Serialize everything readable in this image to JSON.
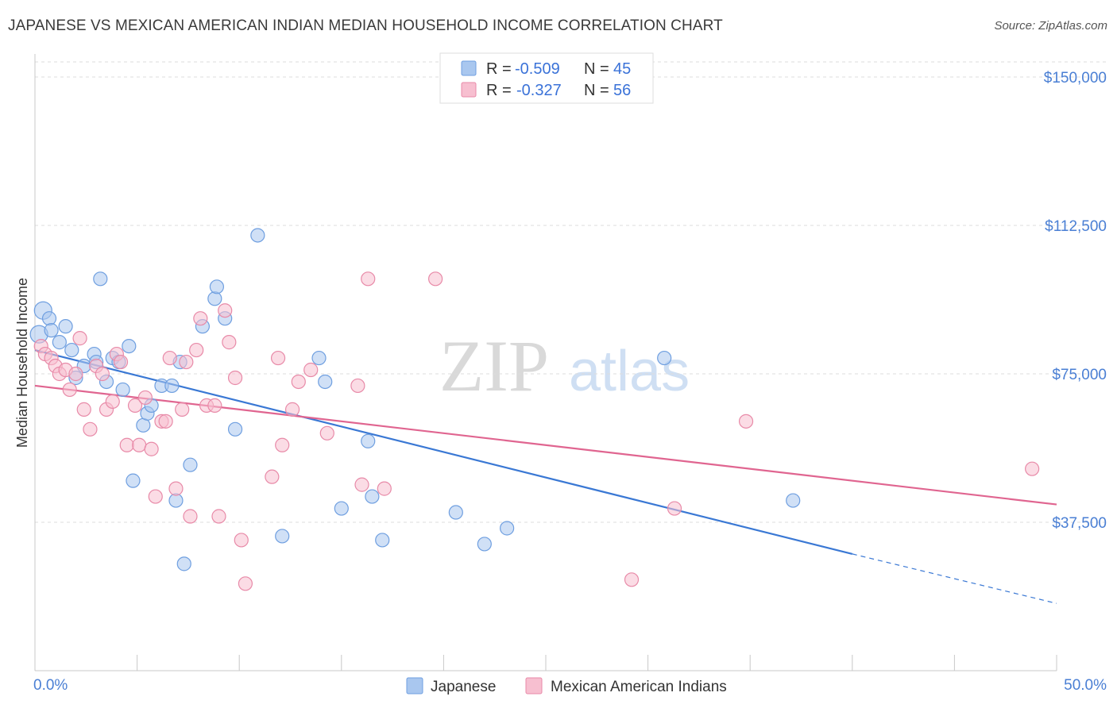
{
  "title": "JAPANESE VS MEXICAN AMERICAN INDIAN MEDIAN HOUSEHOLD INCOME CORRELATION CHART",
  "source": "Source: ZipAtlas.com",
  "watermark": {
    "zip": "ZIP",
    "atlas": "atlas"
  },
  "legend": {
    "r_label": "R =",
    "n_label": "N =",
    "items": [
      {
        "r": "-0.509",
        "n": "45",
        "color": "#a9c7ef",
        "stroke": "#6f9fe0"
      },
      {
        "r": "-0.327",
        "n": "56",
        "color": "#f7bfd0",
        "stroke": "#e88aa8"
      }
    ]
  },
  "bottom_legend": [
    {
      "label": "Japanese",
      "color": "#a9c7ef",
      "stroke": "#6f9fe0"
    },
    {
      "label": "Mexican American Indians",
      "color": "#f7bfd0",
      "stroke": "#e88aa8"
    }
  ],
  "chart_data": {
    "type": "scatter",
    "ylabel": "Median Household Income",
    "xlim": [
      0,
      50
    ],
    "ylim": [
      0,
      150000
    ],
    "x_tick_labels": {
      "min": "0.0%",
      "max": "50.0%"
    },
    "y_ticks": [
      {
        "value": 37500,
        "label": "$37,500"
      },
      {
        "value": 75000,
        "label": "$75,000"
      },
      {
        "value": 112500,
        "label": "$112,500"
      },
      {
        "value": 150000,
        "label": "$150,000"
      }
    ],
    "series": [
      {
        "name": "Japanese",
        "color": "#a9c7ef",
        "stroke": "#6f9fe0",
        "line_color": "#3a78d4",
        "trend": {
          "x0": 0,
          "y0": 81000,
          "x1": 40,
          "y1": 29500,
          "dash_to_x": 50,
          "dash_to_y": 17000
        },
        "points": [
          [
            0.2,
            85000
          ],
          [
            0.4,
            91000
          ],
          [
            0.7,
            89000
          ],
          [
            0.8,
            86000
          ],
          [
            1.2,
            83000
          ],
          [
            1.5,
            87000
          ],
          [
            1.8,
            81000
          ],
          [
            2.0,
            74000
          ],
          [
            2.4,
            77000
          ],
          [
            2.9,
            80000
          ],
          [
            3.0,
            78000
          ],
          [
            3.2,
            99000
          ],
          [
            3.5,
            73000
          ],
          [
            3.8,
            79000
          ],
          [
            4.1,
            78000
          ],
          [
            4.3,
            71000
          ],
          [
            4.6,
            82000
          ],
          [
            4.8,
            48000
          ],
          [
            5.3,
            62000
          ],
          [
            5.5,
            65000
          ],
          [
            5.7,
            67000
          ],
          [
            6.2,
            72000
          ],
          [
            6.7,
            72000
          ],
          [
            6.9,
            43000
          ],
          [
            7.1,
            78000
          ],
          [
            7.3,
            27000
          ],
          [
            7.6,
            52000
          ],
          [
            8.2,
            87000
          ],
          [
            8.8,
            94000
          ],
          [
            8.9,
            97000
          ],
          [
            9.3,
            89000
          ],
          [
            9.8,
            61000
          ],
          [
            10.9,
            110000
          ],
          [
            12.1,
            34000
          ],
          [
            13.9,
            79000
          ],
          [
            14.2,
            73000
          ],
          [
            15.0,
            41000
          ],
          [
            16.3,
            58000
          ],
          [
            16.5,
            44000
          ],
          [
            17.0,
            33000
          ],
          [
            20.6,
            40000
          ],
          [
            22.0,
            32000
          ],
          [
            23.1,
            36000
          ],
          [
            30.8,
            79000
          ],
          [
            37.1,
            43000
          ]
        ]
      },
      {
        "name": "Mexican American Indians",
        "color": "#f7bfd0",
        "stroke": "#e88aa8",
        "line_color": "#e06590",
        "trend": {
          "x0": 0,
          "y0": 72000,
          "x1": 50,
          "y1": 42000
        },
        "points": [
          [
            0.3,
            82000
          ],
          [
            0.5,
            80000
          ],
          [
            0.8,
            79000
          ],
          [
            1.0,
            77000
          ],
          [
            1.2,
            75000
          ],
          [
            1.5,
            76000
          ],
          [
            1.7,
            71000
          ],
          [
            2.0,
            75000
          ],
          [
            2.2,
            84000
          ],
          [
            2.4,
            66000
          ],
          [
            2.7,
            61000
          ],
          [
            3.0,
            77000
          ],
          [
            3.3,
            75000
          ],
          [
            3.5,
            66000
          ],
          [
            3.8,
            68000
          ],
          [
            4.0,
            80000
          ],
          [
            4.2,
            78000
          ],
          [
            4.5,
            57000
          ],
          [
            4.9,
            67000
          ],
          [
            5.1,
            57000
          ],
          [
            5.4,
            69000
          ],
          [
            5.7,
            56000
          ],
          [
            5.9,
            44000
          ],
          [
            6.2,
            63000
          ],
          [
            6.4,
            63000
          ],
          [
            6.6,
            79000
          ],
          [
            6.9,
            46000
          ],
          [
            7.2,
            66000
          ],
          [
            7.4,
            78000
          ],
          [
            7.6,
            39000
          ],
          [
            7.9,
            81000
          ],
          [
            8.1,
            89000
          ],
          [
            8.4,
            67000
          ],
          [
            8.8,
            67000
          ],
          [
            9.0,
            39000
          ],
          [
            9.3,
            91000
          ],
          [
            9.5,
            83000
          ],
          [
            9.8,
            74000
          ],
          [
            10.1,
            33000
          ],
          [
            10.3,
            22000
          ],
          [
            11.6,
            49000
          ],
          [
            11.9,
            79000
          ],
          [
            12.1,
            57000
          ],
          [
            12.6,
            66000
          ],
          [
            12.9,
            73000
          ],
          [
            13.5,
            76000
          ],
          [
            14.3,
            60000
          ],
          [
            15.8,
            72000
          ],
          [
            16.0,
            47000
          ],
          [
            16.3,
            99000
          ],
          [
            17.1,
            46000
          ],
          [
            19.6,
            99000
          ],
          [
            29.2,
            23000
          ],
          [
            31.3,
            41000
          ],
          [
            34.8,
            63000
          ],
          [
            48.8,
            51000
          ]
        ]
      }
    ]
  }
}
